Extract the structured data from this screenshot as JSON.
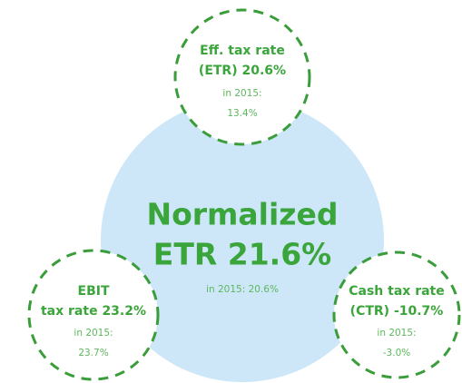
{
  "center": {
    "title": [
      "Normalized",
      "ETR 21.6%"
    ],
    "note": "in 2015: 20.6%"
  },
  "nodes": [
    {
      "label": [
        "Eff. tax rate",
        "(ETR) 20.6%"
      ],
      "note": [
        "in 2015:",
        "13.4%"
      ]
    },
    {
      "label": [
        "EBIT",
        "tax rate 23.2%"
      ],
      "note": [
        "in 2015:",
        "23.7%"
      ]
    },
    {
      "label": [
        "Cash tax rate",
        "(CTR) -10.7%"
      ],
      "note": [
        "in 2015:",
        "-3.0%"
      ]
    }
  ]
}
